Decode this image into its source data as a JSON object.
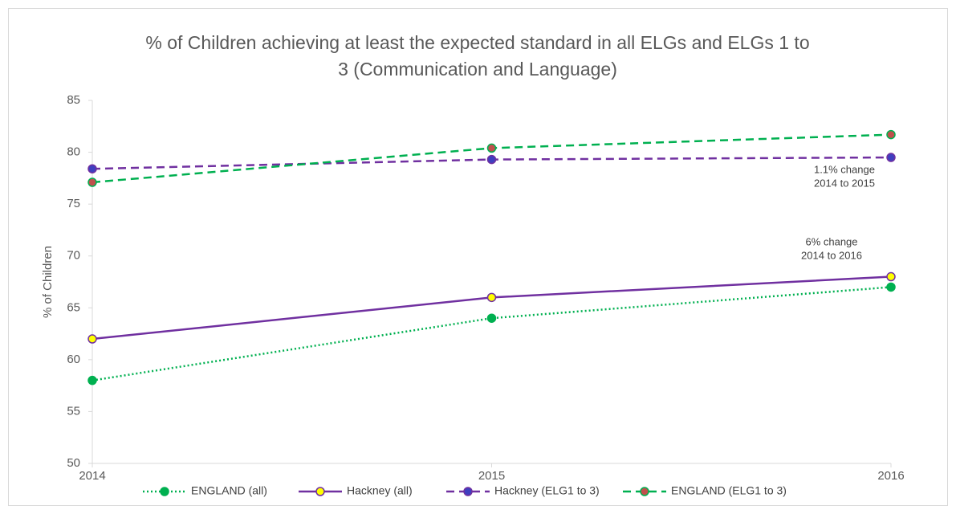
{
  "chart_data": {
    "type": "line",
    "title": [
      "% of Children achieving at least the expected standard in all ELGs and ELGs 1 to",
      "3 (Communication and Language)"
    ],
    "ylabel": "% of Children",
    "categories": [
      "2014",
      "2015",
      "2016"
    ],
    "series": [
      {
        "name": "ENGLAND (all)",
        "color": "#00b050",
        "line_style": "dotted",
        "marker_fill": "#00b050",
        "marker_edge": "#00b050",
        "values": [
          58,
          64,
          67
        ]
      },
      {
        "name": "Hackney (all)",
        "color": "#7030a0",
        "line_style": "solid",
        "marker_fill": "#ffff00",
        "marker_edge": "#7030a0",
        "values": [
          62,
          66,
          68
        ]
      },
      {
        "name": "Hackney (ELG1 to 3)",
        "color": "#7030a0",
        "line_style": "dashed",
        "marker_fill": "#3f3fbf",
        "marker_edge": "#7030a0",
        "values": [
          78.4,
          79.3,
          79.5
        ]
      },
      {
        "name": "ENGLAND (ELG1 to 3)",
        "color": "#00b050",
        "line_style": "dashed",
        "marker_fill": "#c0504d",
        "marker_edge": "#00b050",
        "values": [
          77.1,
          80.4,
          81.7
        ]
      }
    ],
    "ylim": [
      50,
      85
    ],
    "yticks": [
      50,
      55,
      60,
      65,
      70,
      75,
      80,
      85
    ],
    "annotations": [
      [
        "1.1% change",
        "2014 to 2015"
      ],
      [
        "6% change",
        "2014 to 2016"
      ]
    ],
    "legend": "bottom"
  }
}
